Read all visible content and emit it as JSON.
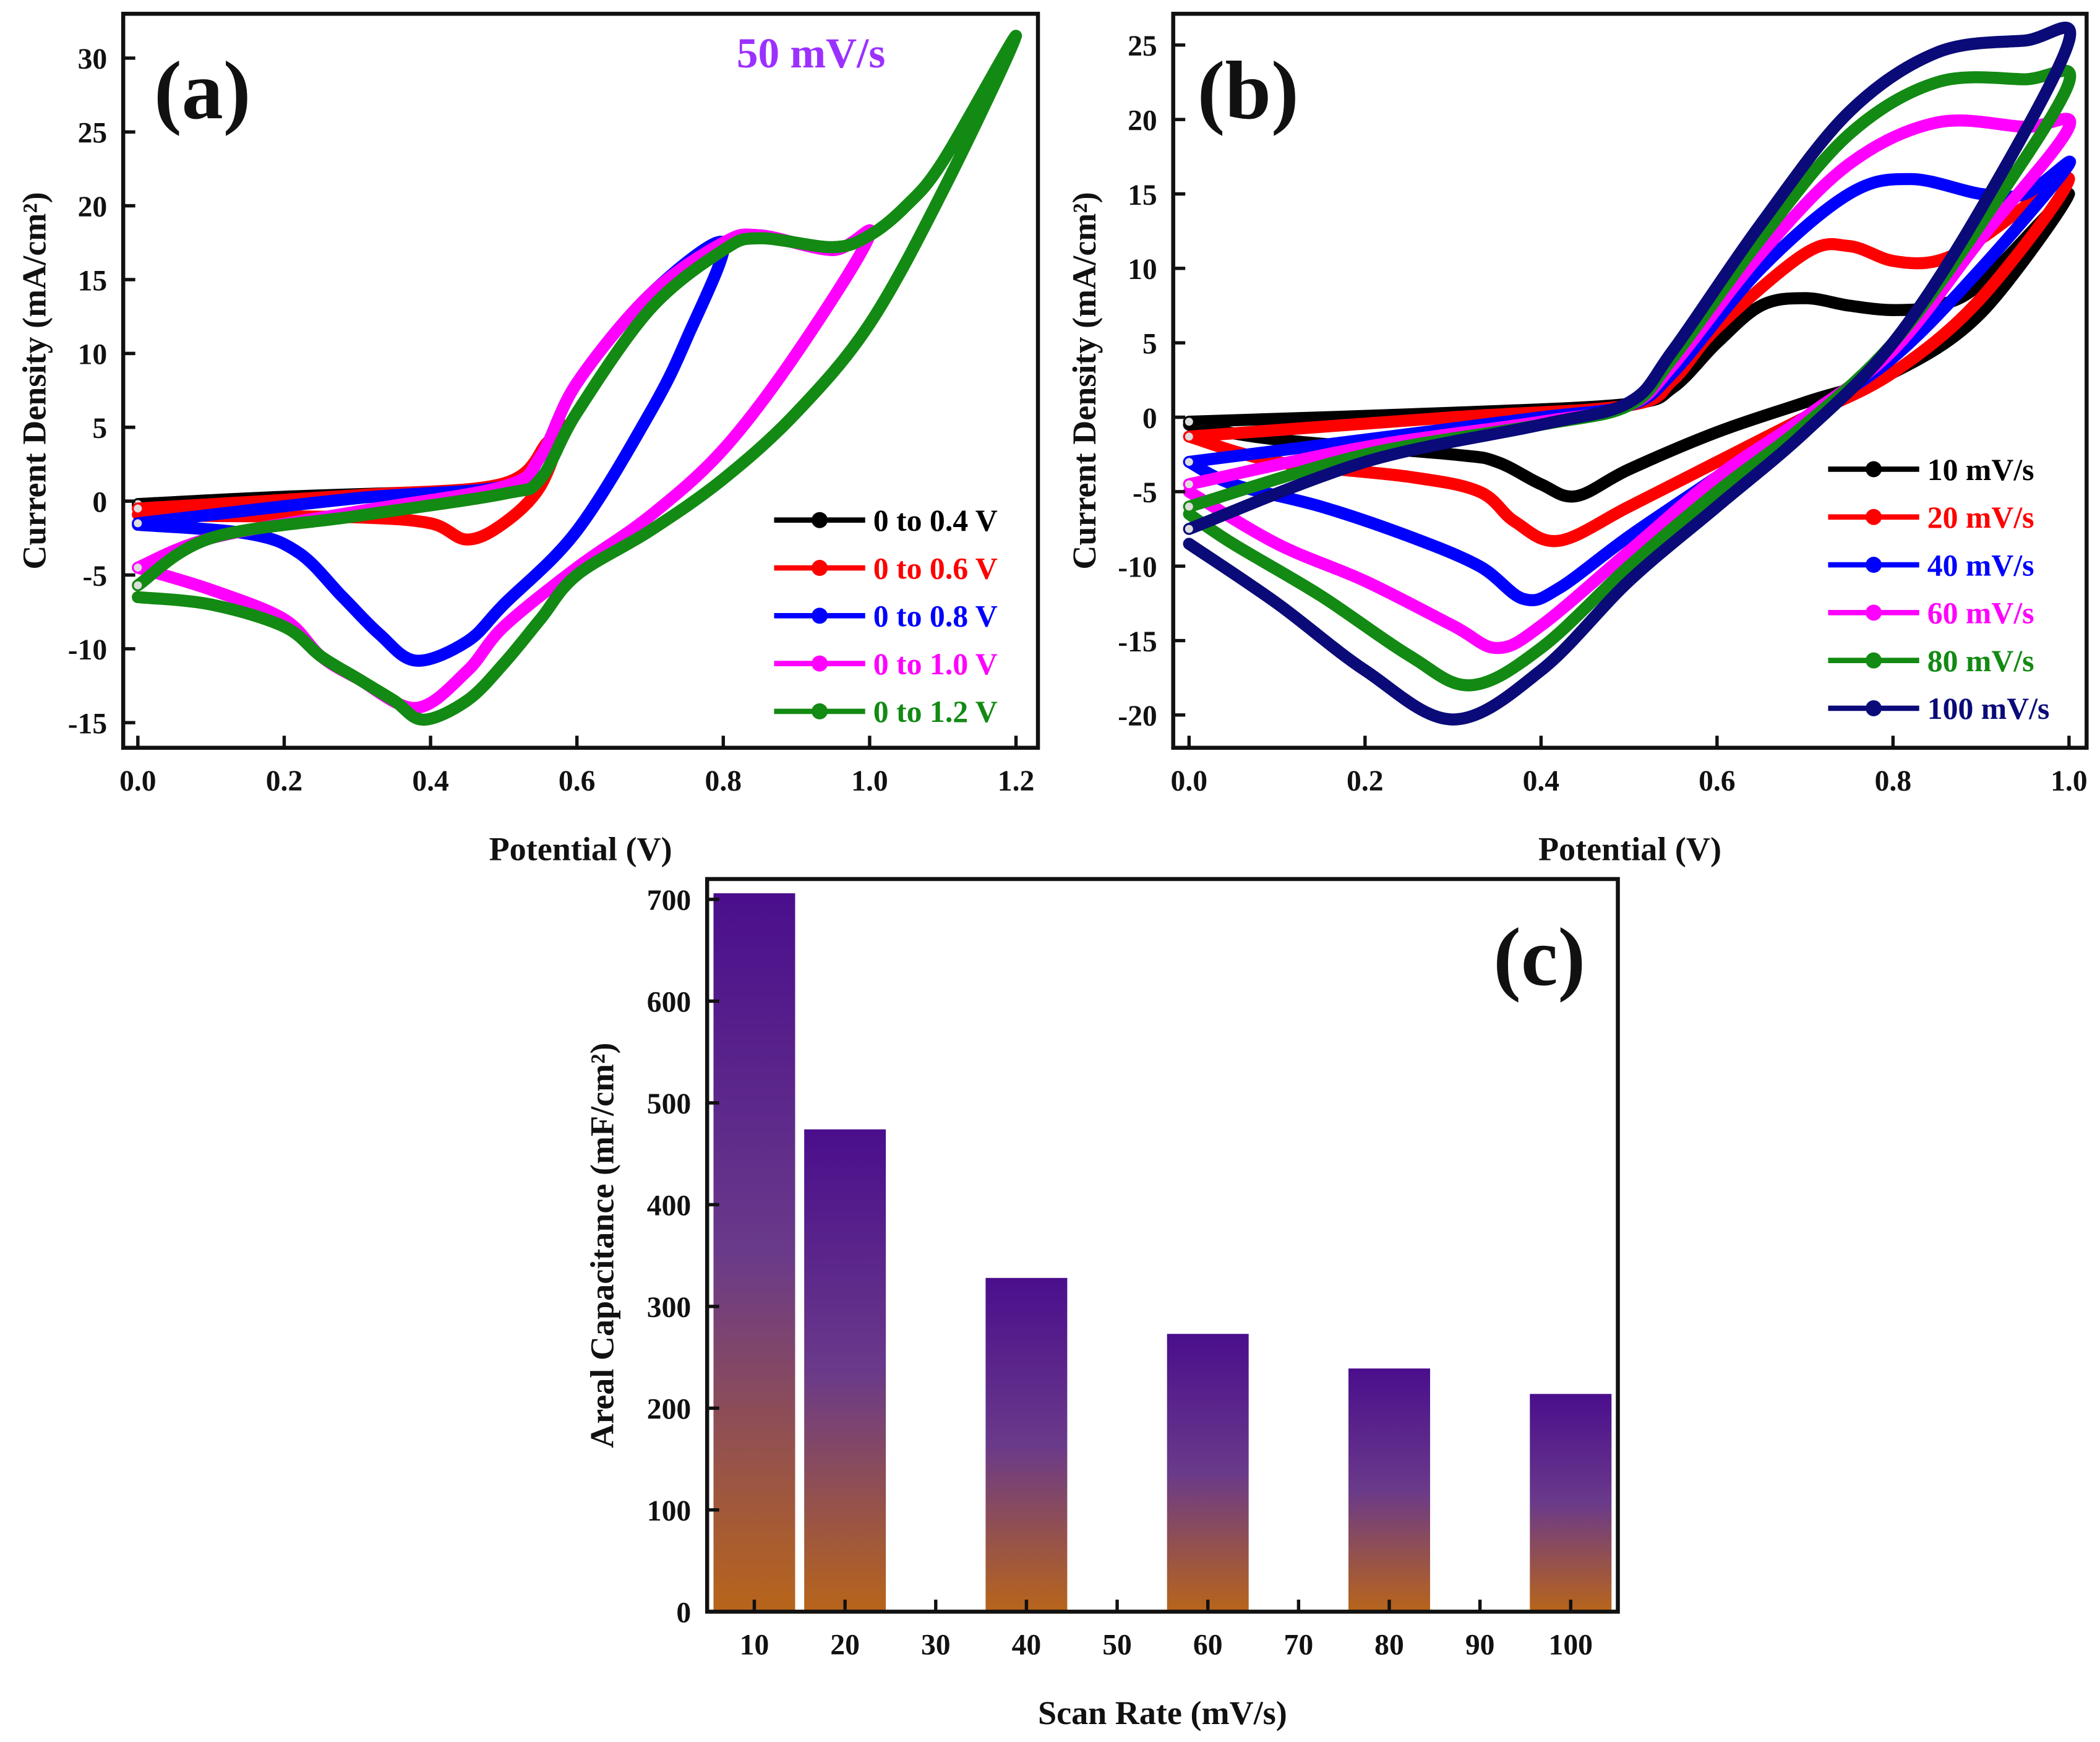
{
  "chart_data": [
    {
      "id": "a",
      "type": "line",
      "panel_label": "(a)",
      "annotation": "50 mV/s",
      "annotation_color": "#9b30ff",
      "xlabel": "Potential (V)",
      "ylabel": "Current Density (mA/cm²)",
      "xlim": [
        -0.02,
        1.23
      ],
      "ylim": [
        -16.7,
        33
      ],
      "xticks": [
        "0.0",
        "0.2",
        "0.4",
        "0.6",
        "0.8",
        "1.0",
        "1.2"
      ],
      "xtick_values": [
        0,
        0.2,
        0.4,
        0.6,
        0.8,
        1.0,
        1.2
      ],
      "yticks": [
        "-15",
        "-10",
        "-5",
        "0",
        "5",
        "10",
        "15",
        "20",
        "25",
        "30"
      ],
      "ytick_values": [
        -15,
        -10,
        -5,
        0,
        5,
        10,
        15,
        20,
        25,
        30
      ],
      "legend_position": "bottom-right",
      "series": [
        {
          "name": "0 to 0.4 V",
          "color": "#000000",
          "points": [
            [
              0,
              -0.2
            ],
            [
              0.2,
              0.3
            ],
            [
              0.4,
              0.6
            ],
            [
              0.3,
              0.3
            ],
            [
              0.1,
              -0.1
            ],
            [
              0,
              -0.3
            ]
          ]
        },
        {
          "name": "0 to 0.6 V",
          "color": "#ff0000",
          "points": [
            [
              0,
              -0.5
            ],
            [
              0.3,
              0.4
            ],
            [
              0.5,
              1.2
            ],
            [
              0.56,
              4
            ],
            [
              0.58,
              5
            ],
            [
              0.55,
              1
            ],
            [
              0.5,
              -1.5
            ],
            [
              0.45,
              -2.6
            ],
            [
              0.4,
              -1.5
            ],
            [
              0.3,
              -1.1
            ],
            [
              0.1,
              -1
            ],
            [
              0,
              -0.9
            ]
          ]
        },
        {
          "name": "0 to 0.8 V",
          "color": "#0000ff",
          "points": [
            [
              0,
              -1.5
            ],
            [
              0.3,
              0.2
            ],
            [
              0.5,
              1
            ],
            [
              0.55,
              3
            ],
            [
              0.6,
              8
            ],
            [
              0.7,
              14
            ],
            [
              0.8,
              17.5
            ],
            [
              0.75,
              11
            ],
            [
              0.7,
              6
            ],
            [
              0.6,
              -2
            ],
            [
              0.5,
              -7
            ],
            [
              0.45,
              -9.5
            ],
            [
              0.38,
              -10.8
            ],
            [
              0.33,
              -9
            ],
            [
              0.28,
              -6.5
            ],
            [
              0.22,
              -3.5
            ],
            [
              0.15,
              -2.2
            ],
            [
              0,
              -1.6
            ]
          ]
        },
        {
          "name": "0 to 1.0 V",
          "color": "#ff00ff",
          "points": [
            [
              0,
              -4.5
            ],
            [
              0.1,
              -2.5
            ],
            [
              0.3,
              -0.7
            ],
            [
              0.5,
              1
            ],
            [
              0.55,
              3
            ],
            [
              0.6,
              8
            ],
            [
              0.7,
              14
            ],
            [
              0.8,
              17.5
            ],
            [
              0.85,
              18
            ],
            [
              0.95,
              17
            ],
            [
              1.0,
              18
            ],
            [
              0.9,
              10
            ],
            [
              0.8,
              3.5
            ],
            [
              0.7,
              -1
            ],
            [
              0.6,
              -4.5
            ],
            [
              0.5,
              -8.5
            ],
            [
              0.45,
              -11.5
            ],
            [
              0.38,
              -14
            ],
            [
              0.3,
              -12
            ],
            [
              0.25,
              -10.5
            ],
            [
              0.2,
              -8
            ],
            [
              0.1,
              -6
            ],
            [
              0,
              -4.5
            ]
          ]
        },
        {
          "name": "0 to 1.2 V",
          "color": "#138a13",
          "points": [
            [
              0,
              -5.7
            ],
            [
              0.1,
              -2.5
            ],
            [
              0.3,
              -1
            ],
            [
              0.5,
              0.5
            ],
            [
              0.55,
              1.5
            ],
            [
              0.6,
              6
            ],
            [
              0.7,
              13
            ],
            [
              0.8,
              17
            ],
            [
              0.85,
              17.8
            ],
            [
              0.95,
              17.2
            ],
            [
              1.0,
              18
            ],
            [
              1.05,
              20
            ],
            [
              1.1,
              23
            ],
            [
              1.2,
              31.5
            ],
            [
              1.1,
              21
            ],
            [
              1.0,
              12
            ],
            [
              0.9,
              6
            ],
            [
              0.8,
              1.5
            ],
            [
              0.7,
              -2
            ],
            [
              0.6,
              -5
            ],
            [
              0.55,
              -8
            ],
            [
              0.5,
              -11
            ],
            [
              0.45,
              -13.5
            ],
            [
              0.39,
              -14.8
            ],
            [
              0.35,
              -13.5
            ],
            [
              0.3,
              -12
            ],
            [
              0.25,
              -10.5
            ],
            [
              0.2,
              -8.5
            ],
            [
              0.1,
              -7
            ],
            [
              0,
              -6.5
            ]
          ]
        }
      ]
    },
    {
      "id": "b",
      "type": "line",
      "panel_label": "(b)",
      "xlabel": "Potential (V)",
      "ylabel": "Current Density (mA/cm²)",
      "xlim": [
        -0.018,
        1.02
      ],
      "ylim": [
        -22.2,
        27.1
      ],
      "xticks": [
        "0.0",
        "0.2",
        "0.4",
        "0.6",
        "0.8",
        "1.0"
      ],
      "xtick_values": [
        0,
        0.2,
        0.4,
        0.6,
        0.8,
        1.0
      ],
      "yticks": [
        "-20",
        "-15",
        "-10",
        "-5",
        "0",
        "5",
        "10",
        "15",
        "20",
        "25"
      ],
      "ytick_values": [
        -20,
        -15,
        -10,
        -5,
        0,
        5,
        10,
        15,
        20,
        25
      ],
      "legend_position": "bottom-right",
      "series": [
        {
          "name": "10 mV/s",
          "color": "#000000",
          "points": [
            [
              0,
              -0.3
            ],
            [
              0.3,
              0.3
            ],
            [
              0.5,
              0.9
            ],
            [
              0.55,
              2
            ],
            [
              0.6,
              5
            ],
            [
              0.65,
              7.5
            ],
            [
              0.7,
              8
            ],
            [
              0.75,
              7.5
            ],
            [
              0.8,
              7.2
            ],
            [
              0.85,
              7.5
            ],
            [
              0.9,
              9
            ],
            [
              1.0,
              15
            ],
            [
              0.9,
              7
            ],
            [
              0.8,
              3
            ],
            [
              0.7,
              1
            ],
            [
              0.6,
              -1
            ],
            [
              0.5,
              -3.5
            ],
            [
              0.44,
              -5.3
            ],
            [
              0.4,
              -4.5
            ],
            [
              0.35,
              -3
            ],
            [
              0.3,
              -2.5
            ],
            [
              0.1,
              -1.5
            ],
            [
              0,
              -0.5
            ]
          ]
        },
        {
          "name": "20 mV/s",
          "color": "#ff0000",
          "points": [
            [
              0,
              -1.3
            ],
            [
              0.3,
              0
            ],
            [
              0.5,
              0.8
            ],
            [
              0.55,
              2.5
            ],
            [
              0.6,
              6
            ],
            [
              0.7,
              11
            ],
            [
              0.75,
              11.5
            ],
            [
              0.8,
              10.5
            ],
            [
              0.85,
              10.5
            ],
            [
              0.9,
              12
            ],
            [
              1.0,
              16
            ],
            [
              0.9,
              8
            ],
            [
              0.8,
              3
            ],
            [
              0.7,
              0
            ],
            [
              0.6,
              -3
            ],
            [
              0.5,
              -6
            ],
            [
              0.42,
              -8.3
            ],
            [
              0.37,
              -7
            ],
            [
              0.33,
              -5
            ],
            [
              0.25,
              -4
            ],
            [
              0.1,
              -3
            ],
            [
              0,
              -1.3
            ]
          ]
        },
        {
          "name": "40 mV/s",
          "color": "#0000ff",
          "points": [
            [
              0,
              -3
            ],
            [
              0.2,
              -1.5
            ],
            [
              0.4,
              0
            ],
            [
              0.5,
              0.8
            ],
            [
              0.55,
              3
            ],
            [
              0.65,
              10
            ],
            [
              0.75,
              15
            ],
            [
              0.82,
              16
            ],
            [
              0.9,
              15
            ],
            [
              0.95,
              15
            ],
            [
              1.0,
              17
            ],
            [
              0.9,
              10
            ],
            [
              0.8,
              4
            ],
            [
              0.7,
              0
            ],
            [
              0.6,
              -4
            ],
            [
              0.5,
              -8
            ],
            [
              0.42,
              -11.5
            ],
            [
              0.38,
              -12.2
            ],
            [
              0.33,
              -10
            ],
            [
              0.25,
              -8
            ],
            [
              0.15,
              -6
            ],
            [
              0.05,
              -4.5
            ],
            [
              0,
              -3
            ]
          ]
        },
        {
          "name": "60 mV/s",
          "color": "#ff00ff",
          "points": [
            [
              0,
              -4.5
            ],
            [
              0.2,
              -2
            ],
            [
              0.4,
              -0.3
            ],
            [
              0.5,
              0.8
            ],
            [
              0.55,
              3.5
            ],
            [
              0.65,
              11
            ],
            [
              0.75,
              17
            ],
            [
              0.85,
              19.8
            ],
            [
              0.95,
              19.5
            ],
            [
              1.0,
              19.5
            ],
            [
              0.9,
              12
            ],
            [
              0.8,
              4.5
            ],
            [
              0.7,
              0
            ],
            [
              0.6,
              -4
            ],
            [
              0.5,
              -9
            ],
            [
              0.4,
              -14
            ],
            [
              0.35,
              -15.5
            ],
            [
              0.3,
              -14
            ],
            [
              0.2,
              -11
            ],
            [
              0.1,
              -8.5
            ],
            [
              0,
              -5
            ]
          ]
        },
        {
          "name": "80 mV/s",
          "color": "#138a13",
          "points": [
            [
              0,
              -6
            ],
            [
              0.2,
              -2.5
            ],
            [
              0.4,
              -0.5
            ],
            [
              0.5,
              0.8
            ],
            [
              0.55,
              4
            ],
            [
              0.65,
              12
            ],
            [
              0.75,
              19
            ],
            [
              0.85,
              22.5
            ],
            [
              0.95,
              22.7
            ],
            [
              1.0,
              22.5
            ],
            [
              0.9,
              13
            ],
            [
              0.8,
              5
            ],
            [
              0.7,
              -0.5
            ],
            [
              0.6,
              -5
            ],
            [
              0.5,
              -10
            ],
            [
              0.4,
              -15.5
            ],
            [
              0.32,
              -18
            ],
            [
              0.25,
              -16
            ],
            [
              0.15,
              -12
            ],
            [
              0.05,
              -8.5
            ],
            [
              0,
              -6.5
            ]
          ]
        },
        {
          "name": "100 mV/s",
          "color": "#0a0a78",
          "points": [
            [
              0,
              -7.5
            ],
            [
              0.2,
              -3
            ],
            [
              0.4,
              -0.5
            ],
            [
              0.5,
              1
            ],
            [
              0.55,
              4.5
            ],
            [
              0.65,
              13
            ],
            [
              0.75,
              20.5
            ],
            [
              0.85,
              24.5
            ],
            [
              0.95,
              25.3
            ],
            [
              1.0,
              25.3
            ],
            [
              0.9,
              14
            ],
            [
              0.8,
              5
            ],
            [
              0.7,
              -1
            ],
            [
              0.6,
              -6
            ],
            [
              0.5,
              -11
            ],
            [
              0.4,
              -17
            ],
            [
              0.3,
              -20.3
            ],
            [
              0.2,
              -17
            ],
            [
              0.1,
              -12.5
            ],
            [
              0,
              -8.5
            ]
          ]
        }
      ]
    },
    {
      "id": "c",
      "type": "bar",
      "panel_label": "(c)",
      "xlabel": "Scan Rate (mV/s)",
      "ylabel": "Areal Capacitance (mF/cm²)",
      "xlim": [
        4.8,
        105.2
      ],
      "ylim": [
        0,
        720
      ],
      "xticks": [
        "10",
        "20",
        "30",
        "40",
        "50",
        "60",
        "70",
        "80",
        "90",
        "100"
      ],
      "xtick_values": [
        10,
        20,
        30,
        40,
        50,
        60,
        70,
        80,
        90,
        100
      ],
      "yticks": [
        "0",
        "100",
        "200",
        "300",
        "400",
        "500",
        "600",
        "700"
      ],
      "ytick_values": [
        0,
        100,
        200,
        300,
        400,
        500,
        600,
        700
      ],
      "categories": [
        10,
        20,
        40,
        60,
        80,
        100
      ],
      "values": [
        706,
        474,
        328,
        273,
        239,
        214
      ],
      "bar_color_top": "#4a0e8c",
      "bar_color_bottom": "#b8651a"
    }
  ]
}
